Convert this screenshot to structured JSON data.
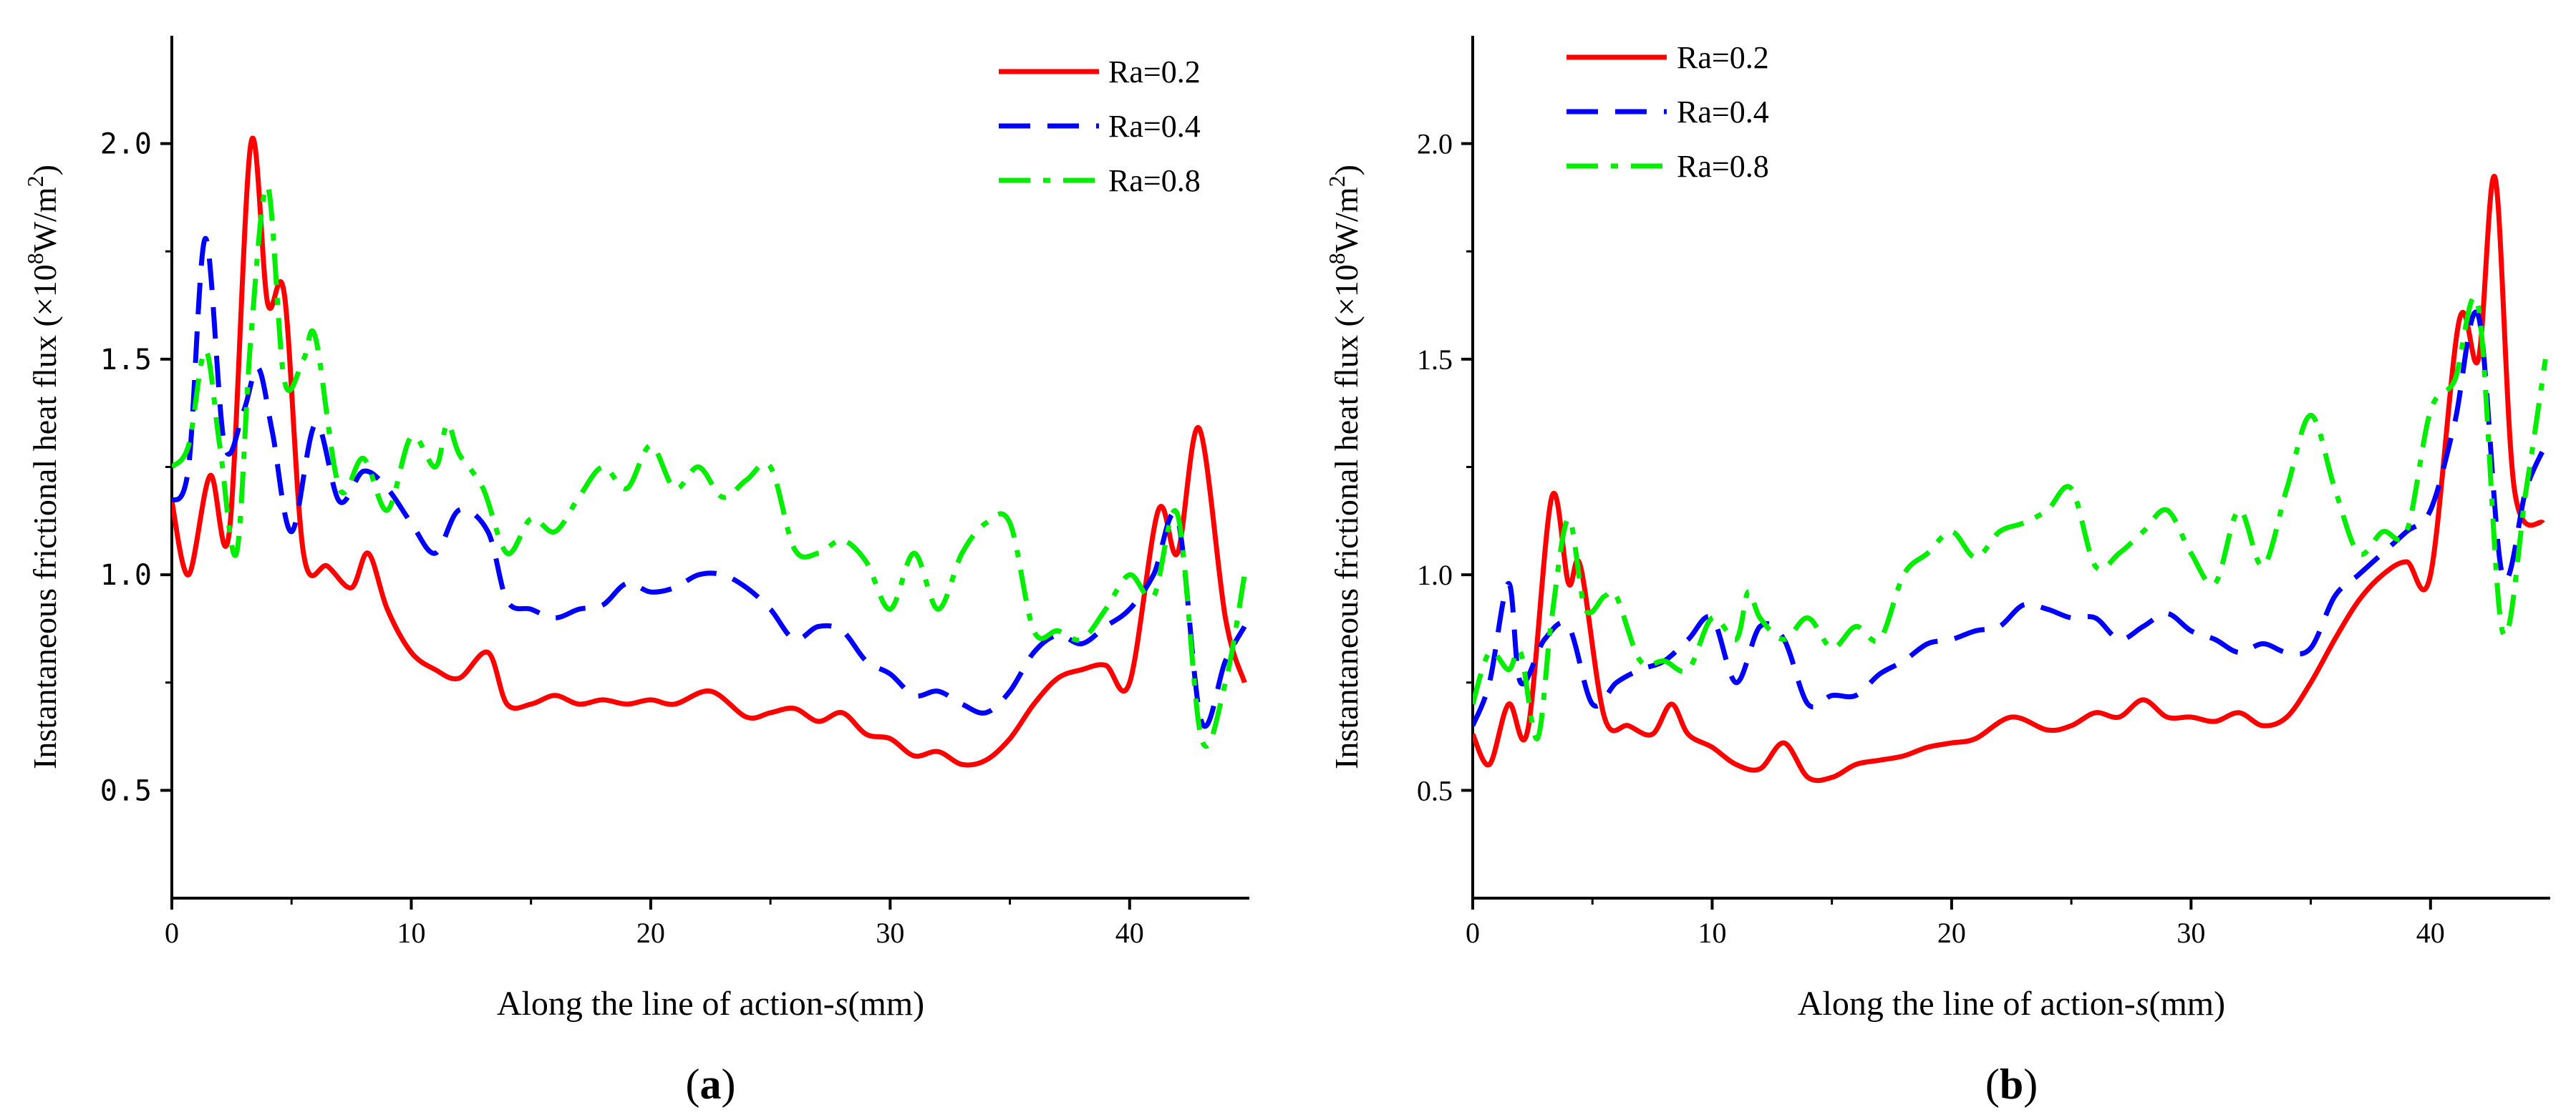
{
  "chart_data": [
    {
      "id": "a",
      "type": "line",
      "panel_label": "a",
      "xlabel": "Along the line of action-",
      "xlabel_italic": "s",
      "xlabel_unit": "(mm)",
      "ylabel": "Instantaneous frictional heat flux (×10",
      "ylabel_sup": "8",
      "ylabel_mid": "W/m",
      "ylabel_sup2": "2",
      "ylabel_end": ")",
      "xlim": [
        0,
        45
      ],
      "ylim": [
        0.25,
        2.25
      ],
      "xticks": [
        0,
        10,
        20,
        30,
        40
      ],
      "xtick_labels": [
        "0",
        "10",
        "20",
        "30",
        "40"
      ],
      "yticks": [
        0.5,
        1.0,
        1.5,
        2.0
      ],
      "ytick_labels": [
        "0.5",
        "1.0",
        "1.5",
        "2.0"
      ],
      "legend_position": "top-right",
      "series": [
        {
          "name": "Ra=0.2",
          "color": "#ff0000",
          "style": "solid",
          "x": [
            0,
            0.7,
            1.6,
            2.4,
            3.3,
            4.0,
            4.7,
            5.5,
            6.5,
            7.5,
            8.2,
            9.0,
            10.0,
            11.0,
            12.0,
            13.2,
            14.0,
            15.0,
            16.0,
            17.0,
            18.0,
            19.0,
            20.0,
            21.0,
            22.5,
            24.0,
            25.0,
            26.0,
            27.0,
            28.0,
            29.0,
            30.0,
            31.0,
            32.0,
            33.0,
            34.0,
            35.0,
            36.0,
            37.0,
            38.0,
            39.0,
            40.0,
            41.2,
            42.0,
            42.9,
            44.0,
            44.8
          ],
          "y": [
            1.17,
            1.0,
            1.23,
            1.1,
            2.0,
            1.63,
            1.65,
            1.05,
            1.02,
            0.97,
            1.05,
            0.92,
            0.82,
            0.78,
            0.76,
            0.82,
            0.7,
            0.7,
            0.72,
            0.7,
            0.71,
            0.7,
            0.71,
            0.7,
            0.73,
            0.67,
            0.68,
            0.69,
            0.66,
            0.68,
            0.63,
            0.62,
            0.58,
            0.59,
            0.56,
            0.57,
            0.62,
            0.7,
            0.76,
            0.78,
            0.79,
            0.75,
            1.15,
            1.05,
            1.34,
            0.9,
            0.75
          ]
        },
        {
          "name": "Ra=0.4",
          "color": "#0000ff",
          "style": "dashed",
          "x": [
            0,
            0.7,
            1.4,
            2.2,
            3.0,
            3.6,
            4.2,
            5.0,
            6.0,
            7.0,
            8.0,
            9.0,
            10.0,
            11.0,
            12.0,
            13.2,
            14.0,
            15.0,
            16.0,
            17.0,
            18.0,
            19.0,
            20.0,
            21.0,
            22.0,
            23.0,
            24.0,
            25.0,
            26.0,
            27.0,
            28.0,
            29.0,
            30.0,
            31.0,
            32.0,
            33.0,
            34.0,
            35.0,
            36.0,
            37.0,
            38.0,
            39.0,
            40.0,
            41.0,
            42.0,
            43.0,
            44.0,
            44.8
          ],
          "y": [
            1.17,
            1.25,
            1.78,
            1.3,
            1.38,
            1.48,
            1.33,
            1.1,
            1.35,
            1.17,
            1.24,
            1.2,
            1.12,
            1.05,
            1.15,
            1.1,
            0.94,
            0.92,
            0.9,
            0.92,
            0.93,
            0.98,
            0.96,
            0.97,
            1.0,
            1.0,
            0.97,
            0.92,
            0.85,
            0.88,
            0.87,
            0.8,
            0.77,
            0.72,
            0.73,
            0.7,
            0.68,
            0.73,
            0.82,
            0.86,
            0.84,
            0.88,
            0.92,
            1.0,
            1.13,
            0.66,
            0.8,
            0.88
          ]
        },
        {
          "name": "Ra=0.8",
          "color": "#00ee00",
          "style": "dashdot",
          "x": [
            0,
            0.7,
            1.4,
            2.0,
            2.7,
            3.3,
            4.0,
            4.7,
            5.5,
            6.0,
            7.0,
            8.0,
            9.0,
            10.0,
            11.0,
            11.5,
            12.0,
            13.0,
            14.0,
            15.0,
            16.0,
            17.0,
            18.0,
            19.0,
            20.0,
            21.0,
            22.0,
            23.0,
            24.0,
            25.0,
            26.0,
            27.0,
            28.0,
            29.0,
            30.0,
            31.0,
            32.0,
            33.0,
            34.0,
            35.0,
            36.0,
            37.0,
            38.0,
            39.0,
            40.0,
            41.0,
            42.0,
            43.0,
            44.0,
            44.8
          ],
          "y": [
            1.25,
            1.3,
            1.52,
            1.3,
            1.05,
            1.55,
            1.9,
            1.45,
            1.5,
            1.55,
            1.2,
            1.27,
            1.15,
            1.32,
            1.25,
            1.35,
            1.28,
            1.2,
            1.05,
            1.13,
            1.1,
            1.18,
            1.25,
            1.2,
            1.3,
            1.2,
            1.25,
            1.18,
            1.22,
            1.25,
            1.06,
            1.05,
            1.08,
            1.03,
            0.92,
            1.05,
            0.92,
            1.05,
            1.12,
            1.12,
            0.87,
            0.87,
            0.85,
            0.92,
            1.0,
            0.95,
            1.14,
            0.62,
            0.75,
            1.0
          ]
        }
      ]
    },
    {
      "id": "b",
      "type": "line",
      "panel_label": "b",
      "xlabel": "Along the line of action-",
      "xlabel_italic": "s",
      "xlabel_unit": "(mm)",
      "ylabel": "Instantaneous frictional heat flux (×10",
      "ylabel_sup": "8",
      "ylabel_mid": "W/m",
      "ylabel_sup2": "2",
      "ylabel_end": ")",
      "xlim": [
        0,
        45
      ],
      "ylim": [
        0.25,
        2.25
      ],
      "xticks": [
        0,
        10,
        20,
        30,
        40
      ],
      "xtick_labels": [
        "0",
        "10",
        "20",
        "30",
        "40"
      ],
      "yticks": [
        0.5,
        1.0,
        1.5,
        2.0
      ],
      "ytick_labels": [
        "0.5",
        "1.0",
        "1.5",
        "2.0"
      ],
      "legend_position": "top-left",
      "series": [
        {
          "name": "Ra=0.2",
          "color": "#ff0000",
          "style": "solid",
          "x": [
            0,
            0.7,
            1.5,
            2.3,
            3.3,
            4.0,
            4.5,
            5.5,
            6.5,
            7.5,
            8.3,
            9.0,
            10.0,
            11.0,
            12.0,
            13.0,
            14.0,
            15.0,
            16.0,
            17.0,
            18.0,
            19.0,
            20.0,
            21.0,
            22.5,
            24.0,
            25.0,
            26.0,
            27.0,
            28.0,
            29.0,
            30.0,
            31.0,
            32.0,
            33.0,
            34.0,
            35.0,
            36.0,
            37.0,
            38.0,
            39.0,
            40.0,
            41.2,
            42.0,
            42.7,
            43.5,
            44.7
          ],
          "y": [
            0.63,
            0.56,
            0.7,
            0.64,
            1.18,
            0.98,
            1.02,
            0.67,
            0.65,
            0.63,
            0.7,
            0.63,
            0.6,
            0.56,
            0.55,
            0.61,
            0.53,
            0.53,
            0.56,
            0.57,
            0.58,
            0.6,
            0.61,
            0.62,
            0.67,
            0.64,
            0.65,
            0.68,
            0.67,
            0.71,
            0.67,
            0.67,
            0.66,
            0.68,
            0.65,
            0.67,
            0.75,
            0.85,
            0.94,
            1.0,
            1.03,
            1.0,
            1.59,
            1.5,
            1.92,
            1.2,
            1.12
          ]
        },
        {
          "name": "Ra=0.4",
          "color": "#0000ff",
          "style": "dashed",
          "x": [
            0,
            0.7,
            1.5,
            2.0,
            3.0,
            4.0,
            5.0,
            6.0,
            7.0,
            8.0,
            9.0,
            10.0,
            11.0,
            12.0,
            13.0,
            14.0,
            15.0,
            16.0,
            17.0,
            18.0,
            19.0,
            20.0,
            21.0,
            22.0,
            23.0,
            24.0,
            25.0,
            26.0,
            27.0,
            28.0,
            29.0,
            30.0,
            31.0,
            32.0,
            33.0,
            34.0,
            35.0,
            36.0,
            37.0,
            38.0,
            39.0,
            40.0,
            41.0,
            42.0,
            43.0,
            44.0,
            44.8
          ],
          "y": [
            0.65,
            0.75,
            0.98,
            0.75,
            0.85,
            0.88,
            0.7,
            0.75,
            0.78,
            0.8,
            0.85,
            0.9,
            0.75,
            0.88,
            0.85,
            0.7,
            0.72,
            0.72,
            0.77,
            0.8,
            0.84,
            0.85,
            0.87,
            0.88,
            0.93,
            0.92,
            0.9,
            0.9,
            0.85,
            0.88,
            0.91,
            0.87,
            0.85,
            0.82,
            0.84,
            0.82,
            0.83,
            0.95,
            1.0,
            1.05,
            1.1,
            1.15,
            1.35,
            1.6,
            1.0,
            1.2,
            1.3
          ]
        },
        {
          "name": "Ra=0.8",
          "color": "#00ee00",
          "style": "dashdot",
          "x": [
            0,
            0.7,
            1.5,
            2.0,
            2.7,
            3.3,
            4.0,
            4.7,
            5.5,
            6.0,
            7.0,
            8.0,
            9.0,
            10.0,
            11.0,
            11.5,
            12.0,
            13.0,
            14.0,
            15.0,
            16.0,
            17.0,
            18.0,
            19.0,
            20.0,
            21.0,
            22.0,
            23.0,
            24.0,
            25.0,
            26.0,
            27.0,
            28.0,
            29.0,
            30.0,
            31.0,
            32.0,
            33.0,
            34.0,
            35.0,
            36.0,
            37.0,
            38.0,
            39.0,
            40.0,
            41.0,
            42.0,
            43.0,
            44.0,
            44.8
          ],
          "y": [
            0.7,
            0.82,
            0.78,
            0.82,
            0.62,
            0.9,
            1.13,
            0.92,
            0.95,
            0.95,
            0.8,
            0.8,
            0.78,
            0.9,
            0.85,
            0.96,
            0.9,
            0.85,
            0.9,
            0.83,
            0.88,
            0.85,
            1.0,
            1.05,
            1.1,
            1.04,
            1.1,
            1.12,
            1.15,
            1.2,
            1.02,
            1.05,
            1.1,
            1.15,
            1.05,
            0.98,
            1.15,
            1.02,
            1.2,
            1.37,
            1.2,
            1.05,
            1.1,
            1.1,
            1.38,
            1.45,
            1.62,
            0.87,
            1.2,
            1.5
          ]
        }
      ]
    }
  ]
}
